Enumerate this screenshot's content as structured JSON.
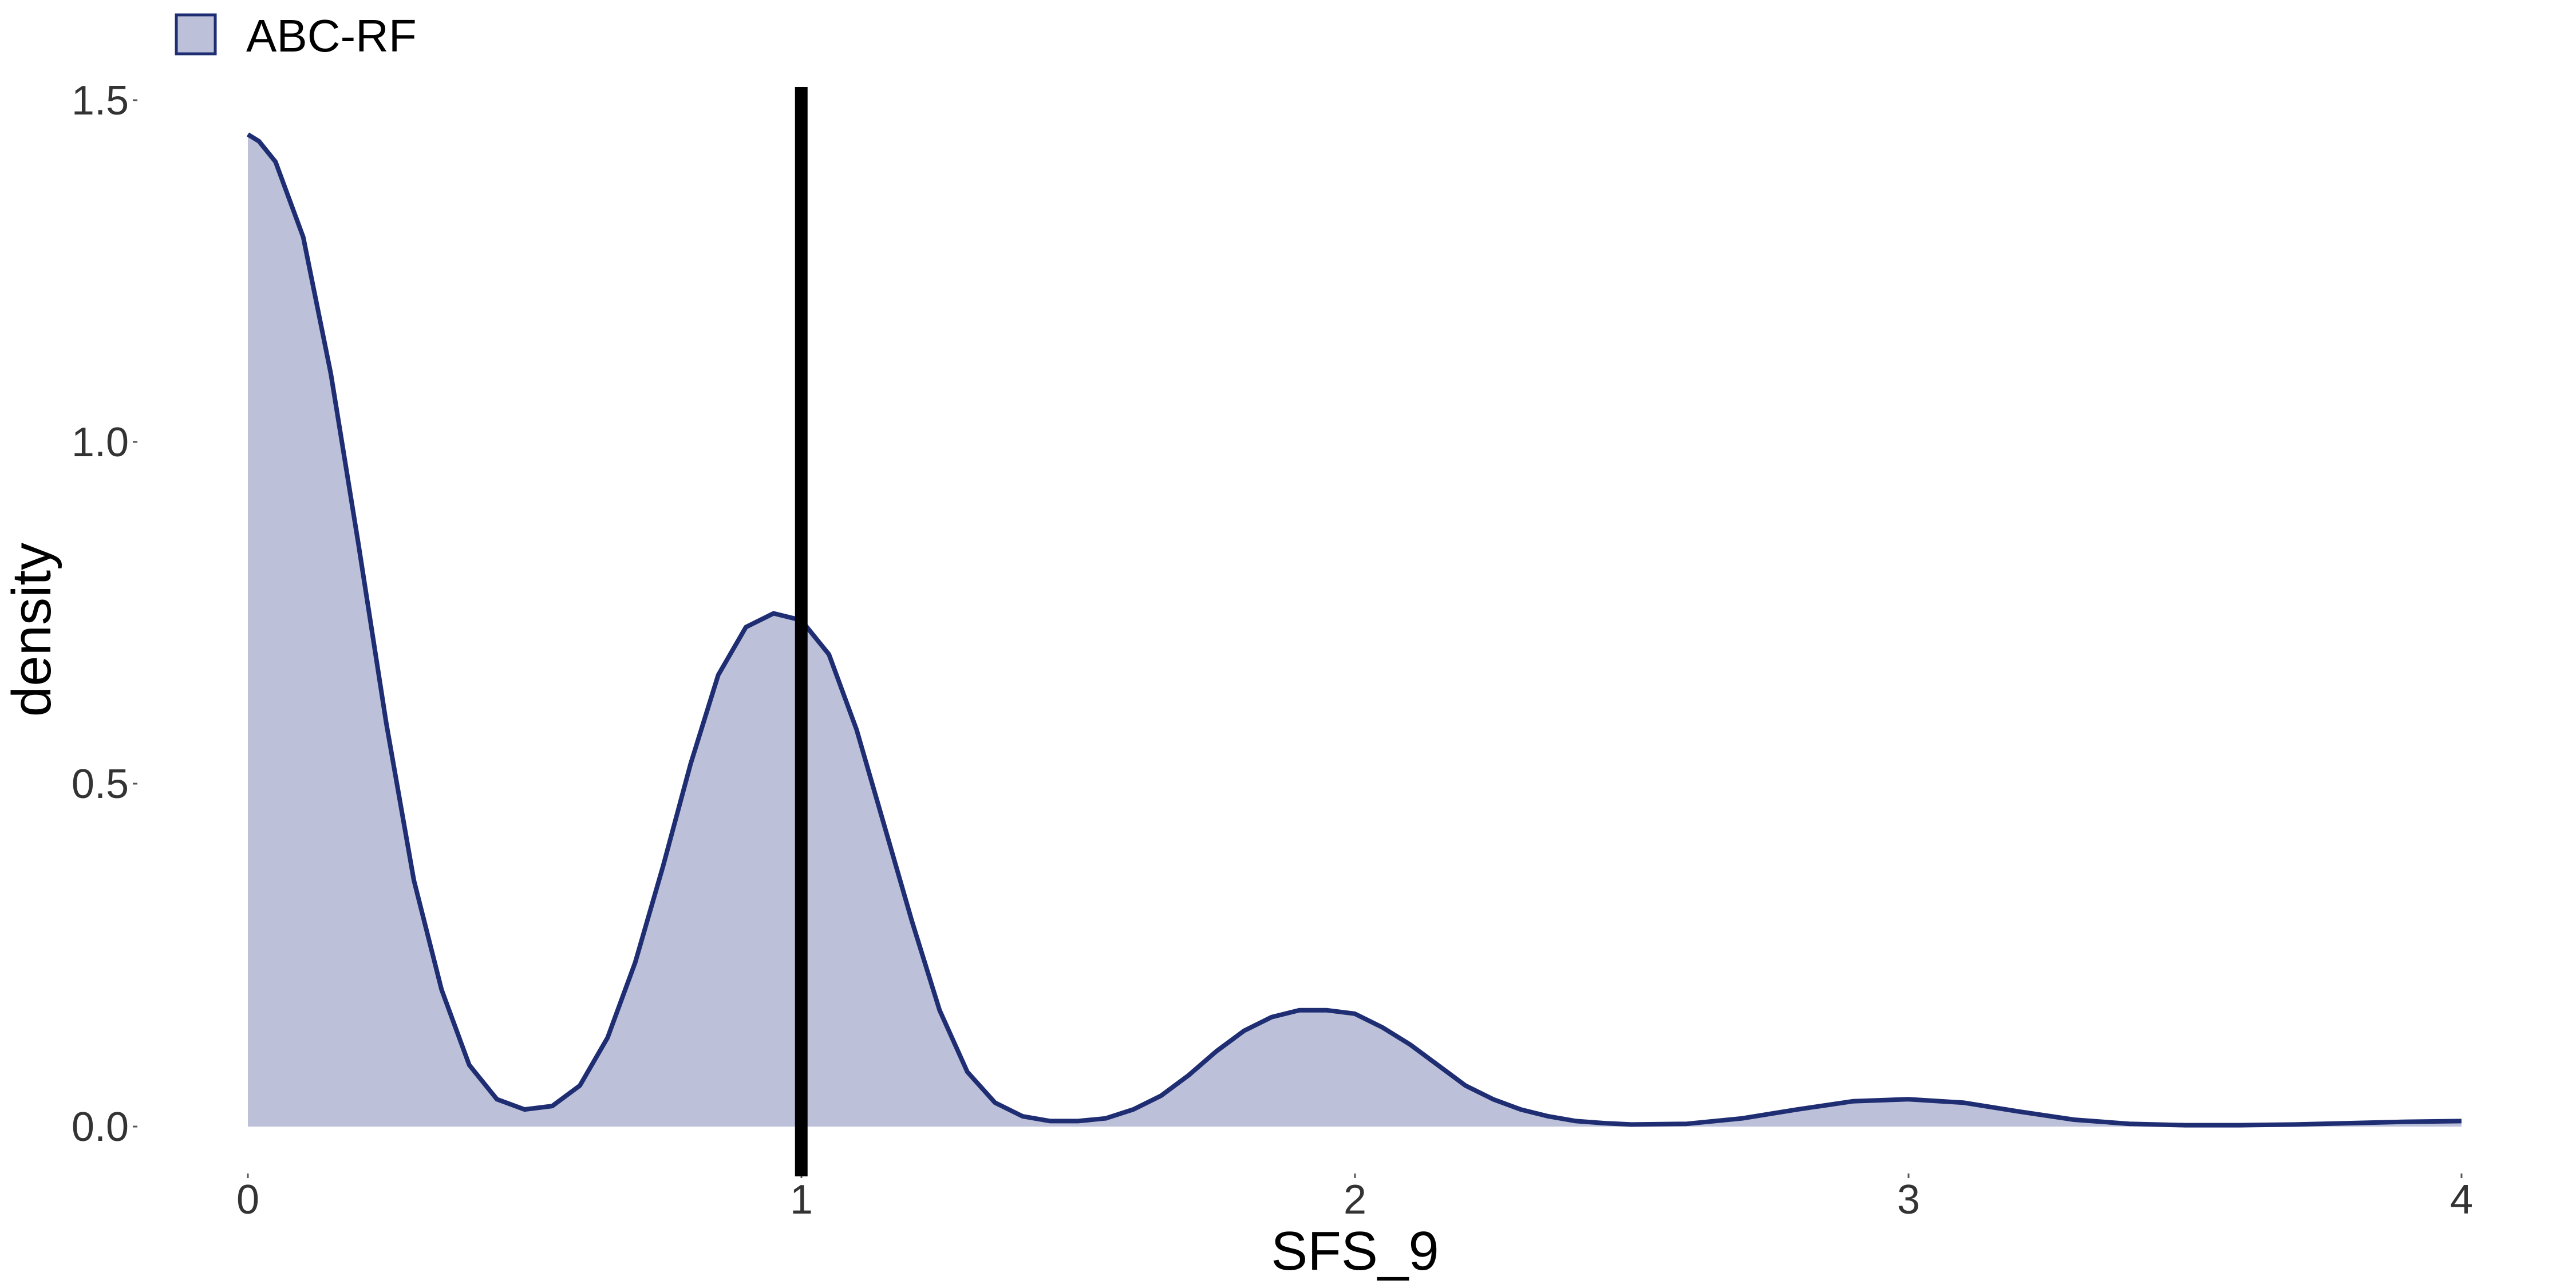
{
  "chart_data": {
    "type": "area",
    "xlabel": "SFS_9",
    "ylabel": "density",
    "xlim": [
      0,
      4
    ],
    "ylim": [
      0,
      1.5
    ],
    "x_ticks": [
      "0",
      "1",
      "2",
      "3",
      "4"
    ],
    "y_ticks": [
      "0.0",
      "0.5",
      "1.0",
      "1.5"
    ],
    "grid": false,
    "legend": {
      "position": "top-left",
      "entries": [
        "ABC-RF"
      ]
    },
    "colors": {
      "fill": "#bcc1d9",
      "line": "#1f2d73",
      "reference_line": "#000000"
    },
    "series": [
      {
        "name": "ABC-RF",
        "x": [
          0.0,
          0.02,
          0.05,
          0.1,
          0.15,
          0.2,
          0.25,
          0.3,
          0.35,
          0.4,
          0.45,
          0.5,
          0.55,
          0.6,
          0.65,
          0.7,
          0.75,
          0.8,
          0.85,
          0.9,
          0.95,
          1.0,
          1.05,
          1.1,
          1.15,
          1.2,
          1.25,
          1.3,
          1.35,
          1.4,
          1.45,
          1.5,
          1.55,
          1.6,
          1.65,
          1.7,
          1.75,
          1.8,
          1.85,
          1.9,
          1.95,
          2.0,
          2.05,
          2.1,
          2.15,
          2.2,
          2.25,
          2.3,
          2.35,
          2.4,
          2.45,
          2.5,
          2.6,
          2.7,
          2.8,
          2.9,
          3.0,
          3.1,
          3.2,
          3.3,
          3.4,
          3.5,
          3.6,
          3.7,
          3.8,
          3.9,
          4.0
        ],
        "y": [
          1.45,
          1.44,
          1.41,
          1.3,
          1.1,
          0.85,
          0.59,
          0.36,
          0.2,
          0.09,
          0.04,
          0.025,
          0.03,
          0.06,
          0.13,
          0.24,
          0.38,
          0.53,
          0.66,
          0.73,
          0.75,
          0.74,
          0.69,
          0.58,
          0.44,
          0.3,
          0.17,
          0.08,
          0.035,
          0.015,
          0.008,
          0.008,
          0.012,
          0.025,
          0.045,
          0.075,
          0.11,
          0.14,
          0.16,
          0.17,
          0.17,
          0.165,
          0.145,
          0.12,
          0.09,
          0.06,
          0.04,
          0.025,
          0.015,
          0.008,
          0.005,
          0.003,
          0.004,
          0.012,
          0.025,
          0.037,
          0.04,
          0.035,
          0.022,
          0.01,
          0.004,
          0.002,
          0.002,
          0.003,
          0.005,
          0.007,
          0.008
        ]
      }
    ],
    "reference_line": {
      "x": 1.0
    }
  }
}
